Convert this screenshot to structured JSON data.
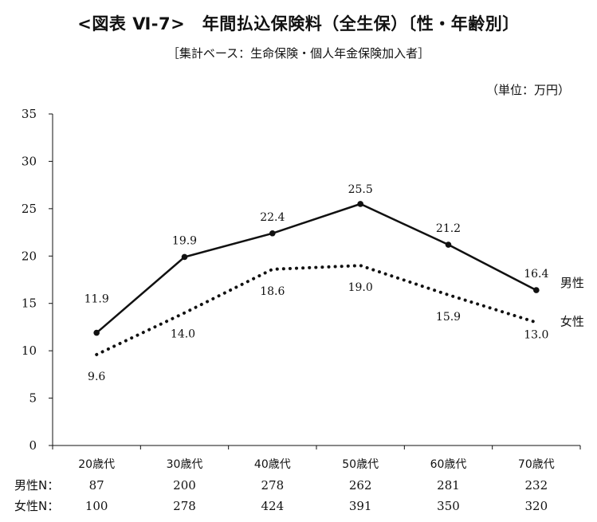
{
  "title": "<図表 Ⅵ-7>　年間払込保険料（全生保）〔性・年齢別〕",
  "subtitle": "［集計ベース：生命保険・個人年金保険加入者］",
  "unit": "（単位：万円）",
  "chart_data": {
    "type": "line",
    "categories": [
      "20歳代",
      "30歳代",
      "40歳代",
      "50歳代",
      "60歳代",
      "70歳代"
    ],
    "series": [
      {
        "name": "男性",
        "style": "solid",
        "values": [
          11.9,
          19.9,
          22.4,
          25.5,
          21.2,
          16.4
        ],
        "labels": [
          "11.9",
          "19.9",
          "22.4",
          "25.5",
          "21.2",
          "16.4"
        ]
      },
      {
        "name": "女性",
        "style": "dotted",
        "values": [
          9.6,
          14.0,
          18.6,
          19.0,
          15.9,
          13.0
        ],
        "labels": [
          "9.6",
          "14.0",
          "18.6",
          "19.0",
          "15.9",
          "13.0"
        ]
      }
    ],
    "ylim": [
      0,
      35
    ],
    "yticks": [
      "0",
      "5",
      "10",
      "15",
      "20",
      "25",
      "30",
      "35"
    ],
    "xlabel": "",
    "ylabel": "",
    "grid": false,
    "legend": "right-end-of-lines"
  },
  "n_table": [
    {
      "label": "男性N：",
      "values": [
        "87",
        "200",
        "278",
        "262",
        "281",
        "232"
      ]
    },
    {
      "label": "女性N：",
      "values": [
        "100",
        "278",
        "424",
        "391",
        "350",
        "320"
      ]
    }
  ],
  "colors": {
    "line": "#111111",
    "axis": "#111111"
  }
}
